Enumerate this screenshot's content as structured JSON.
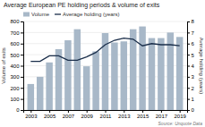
{
  "chart_data": {
    "type": "bar",
    "title": "Average European PE holding periods & volume of exits",
    "x": [
      2003,
      2004,
      2005,
      2006,
      2007,
      2008,
      2009,
      2010,
      2011,
      2012,
      2013,
      2014,
      2015,
      2016,
      2017,
      2018,
      2019
    ],
    "xlim": [
      2002.2,
      2019.8
    ],
    "xticks": [
      2003,
      2005,
      2007,
      2009,
      2011,
      2013,
      2015,
      2017,
      2019
    ],
    "series": [
      {
        "name": "Volume",
        "type": "bar",
        "color": "#a8b8c8",
        "values": [
          235,
          300,
          430,
          550,
          630,
          730,
          395,
          530,
          695,
          610,
          620,
          730,
          755,
          650,
          650,
          700,
          660
        ]
      },
      {
        "name": "Average holding (years)",
        "type": "line",
        "color": "#1a2e4a",
        "axis": "y2",
        "values": [
          4.4,
          4.4,
          4.9,
          4.9,
          4.5,
          4.5,
          4.8,
          5.2,
          5.9,
          6.3,
          6.5,
          6.4,
          5.8,
          6.0,
          5.9,
          5.9,
          5.8
        ]
      }
    ],
    "ylabel": "Volume of exits",
    "y2label": "Average holding (years)",
    "ylim": [
      0,
      800
    ],
    "yticks": [
      0,
      100,
      200,
      300,
      400,
      500,
      600,
      700,
      800
    ],
    "y2lim": [
      0,
      8
    ],
    "y2ticks": [
      0,
      1,
      2,
      3,
      4,
      5,
      6,
      7,
      8
    ],
    "grid": true,
    "legend": "upper left",
    "annotations": [
      "Source: Unquote Data"
    ]
  }
}
